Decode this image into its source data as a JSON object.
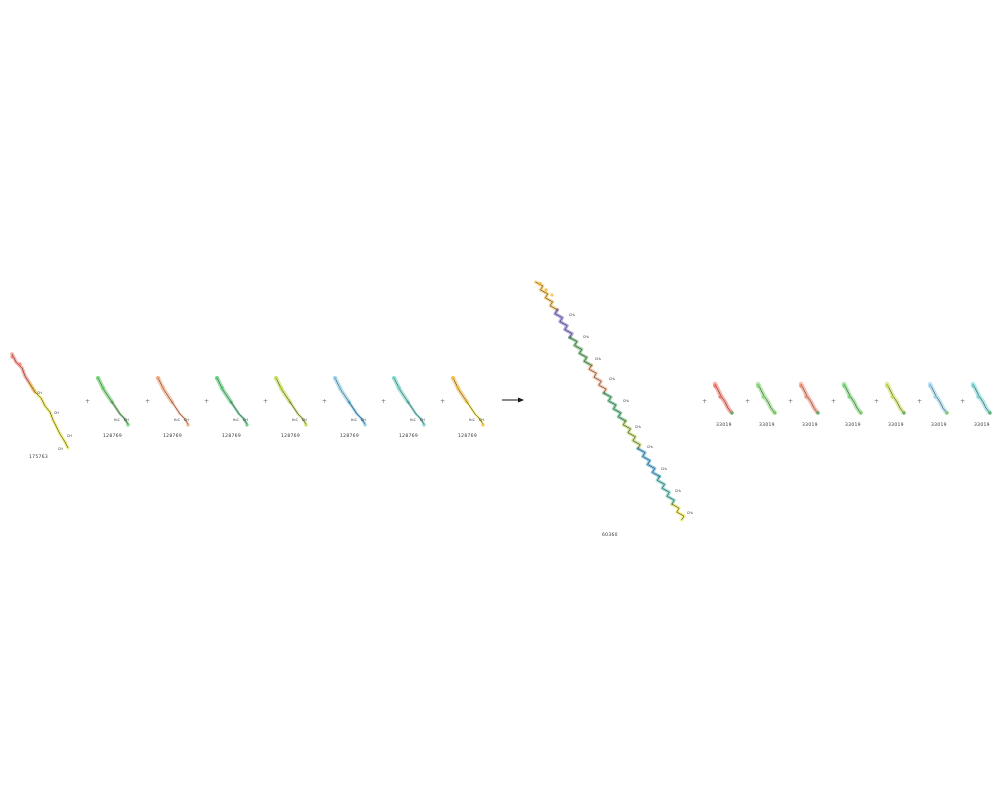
{
  "reaction": {
    "reactants": [
      {
        "id": "175763",
        "color": "#e8e01c"
      },
      {
        "id": "128769",
        "color": "#5ccd5c"
      },
      {
        "id": "128769",
        "color": "#f39a6a"
      },
      {
        "id": "128769",
        "color": "#4cc96c"
      },
      {
        "id": "128769",
        "color": "#b8d93a"
      },
      {
        "id": "128769",
        "color": "#7ec9e6"
      },
      {
        "id": "128769",
        "color": "#65cfc1"
      },
      {
        "id": "128769",
        "color": "#f5b530"
      }
    ],
    "product_main": {
      "id": "60360"
    },
    "byproducts": [
      {
        "id": "33019",
        "color": "#f56b5c"
      },
      {
        "id": "33019",
        "color": "#7fd66b"
      },
      {
        "id": "33019",
        "color": "#f1866a"
      },
      {
        "id": "33019",
        "color": "#6fd26c"
      },
      {
        "id": "33019",
        "color": "#c6dc4a"
      },
      {
        "id": "33019",
        "color": "#8ecdea"
      },
      {
        "id": "33019",
        "color": "#6dd1d2"
      }
    ],
    "plus": "+",
    "segment_colors": [
      "#f5b530",
      "#6c5fd0",
      "#4aa84a",
      "#f39a6a",
      "#39b46a",
      "#a8c93a",
      "#2f9fd8",
      "#45c0b1",
      "#e8e01c"
    ]
  }
}
